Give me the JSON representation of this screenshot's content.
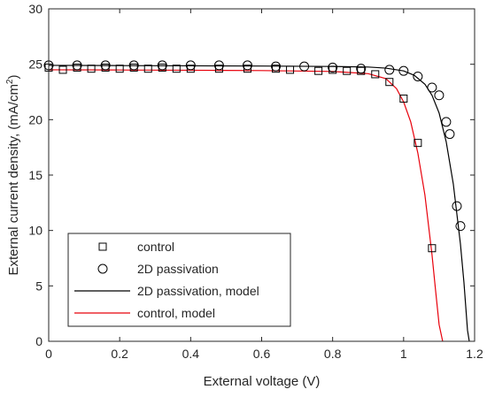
{
  "chart_data": {
    "type": "scatter",
    "xlabel": "External voltage (V)",
    "ylabel_main": "External current density, (mA/cm",
    "ylabel_sup": "2",
    "ylabel_close": ")",
    "xlim": [
      0,
      1.2
    ],
    "ylim": [
      0,
      30
    ],
    "xticks": [
      "0",
      "0.2",
      "0.4",
      "0.6",
      "0.8",
      "1",
      "1.2"
    ],
    "xtick_values": [
      0,
      0.2,
      0.4,
      0.6,
      0.8,
      1.0,
      1.2
    ],
    "yticks": [
      "0",
      "5",
      "10",
      "15",
      "20",
      "25",
      "30"
    ],
    "ytick_values": [
      0,
      5,
      10,
      15,
      20,
      25,
      30
    ],
    "grid": false,
    "legend_position": "bottom-left",
    "series": [
      {
        "name": "control",
        "kind": "markers",
        "marker": "square",
        "color": "#000000",
        "x": [
          0.0,
          0.04,
          0.08,
          0.12,
          0.16,
          0.2,
          0.24,
          0.28,
          0.32,
          0.36,
          0.4,
          0.48,
          0.56,
          0.64,
          0.68,
          0.76,
          0.8,
          0.84,
          0.88,
          0.92,
          0.96,
          1.0,
          1.04,
          1.08
        ],
        "y": [
          24.7,
          24.5,
          24.7,
          24.6,
          24.7,
          24.6,
          24.7,
          24.6,
          24.7,
          24.6,
          24.6,
          24.6,
          24.6,
          24.6,
          24.5,
          24.4,
          24.5,
          24.4,
          24.4,
          24.1,
          23.4,
          21.9,
          17.9,
          8.4
        ]
      },
      {
        "name": "2D passivation",
        "kind": "markers",
        "marker": "circle",
        "color": "#000000",
        "x": [
          0.0,
          0.08,
          0.16,
          0.24,
          0.32,
          0.4,
          0.48,
          0.56,
          0.64,
          0.72,
          0.8,
          0.88,
          0.96,
          1.0,
          1.04,
          1.08,
          1.1,
          1.12,
          1.13,
          1.15,
          1.16
        ],
        "y": [
          24.9,
          24.9,
          24.9,
          24.9,
          24.9,
          24.9,
          24.9,
          24.9,
          24.8,
          24.8,
          24.7,
          24.6,
          24.5,
          24.4,
          23.9,
          22.9,
          22.2,
          19.8,
          18.7,
          12.2,
          10.4
        ]
      },
      {
        "name": "2D passivation, model",
        "kind": "line",
        "color": "#000000",
        "x": [
          0.0,
          0.2,
          0.4,
          0.6,
          0.8,
          0.9,
          0.95,
          1.0,
          1.03,
          1.06,
          1.08,
          1.1,
          1.12,
          1.14,
          1.16,
          1.17,
          1.18,
          1.185
        ],
        "y": [
          24.9,
          24.88,
          24.86,
          24.84,
          24.8,
          24.75,
          24.65,
          24.4,
          24.0,
          23.2,
          22.2,
          20.6,
          18.0,
          14.2,
          8.8,
          5.3,
          1.0,
          0.0
        ]
      },
      {
        "name": "control, model",
        "kind": "line",
        "color": "#e8000b",
        "x": [
          0.0,
          0.2,
          0.4,
          0.6,
          0.8,
          0.9,
          0.95,
          0.98,
          1.0,
          1.02,
          1.04,
          1.06,
          1.08,
          1.09,
          1.1,
          1.11
        ],
        "y": [
          24.5,
          24.48,
          24.46,
          24.43,
          24.35,
          24.15,
          23.7,
          22.8,
          21.6,
          19.8,
          17.0,
          13.2,
          7.8,
          4.6,
          1.5,
          0.0
        ]
      }
    ]
  }
}
